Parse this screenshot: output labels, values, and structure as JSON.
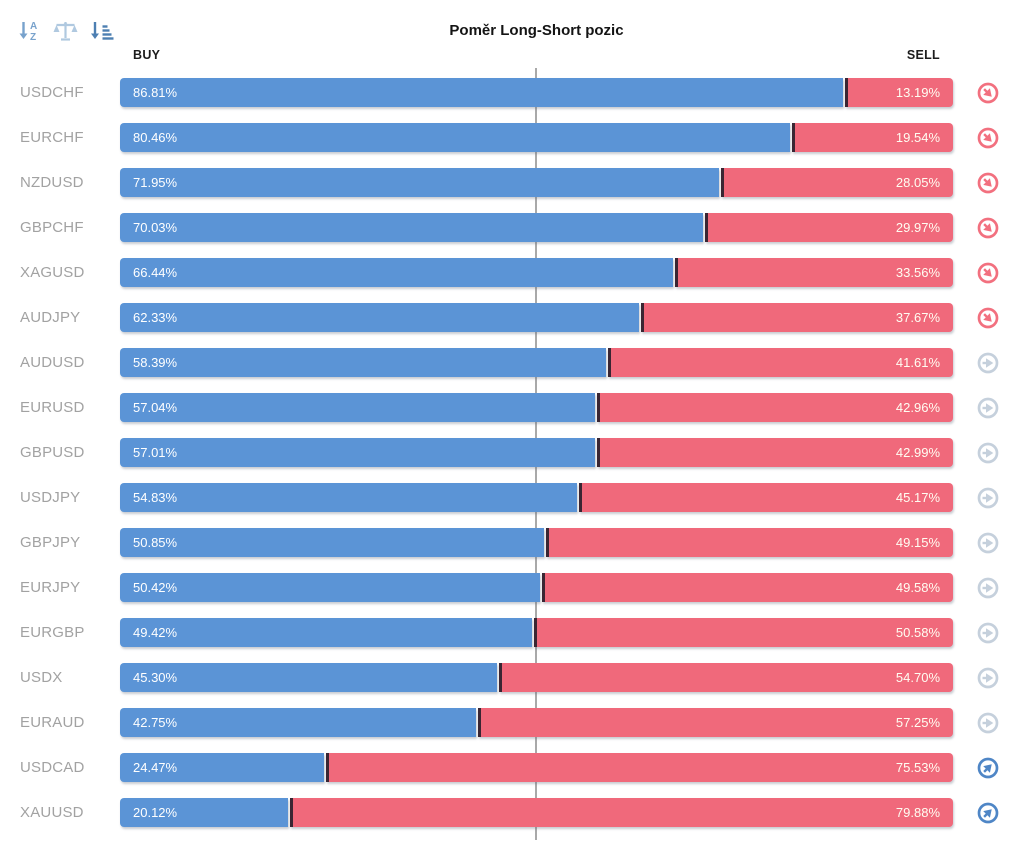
{
  "title": "Poměr Long-Short pozic",
  "toolbar": {
    "sort_alpha_icon": "sort-alphabetical",
    "balance_icon": "balance-scale",
    "sort_value_icon": "sort-by-value"
  },
  "columns": {
    "buy": "BUY",
    "sell": "SELL"
  },
  "colors": {
    "buy_bar": "#5b94d6",
    "sell_bar": "#f0697b",
    "split_line": "#3a2633",
    "center_line": "#a9a9a9",
    "signal_down": "#f2707f",
    "signal_neutral": "#c5d0dc",
    "signal_up": "#4f86c6",
    "symbol_text": "#a2a2a2",
    "header_text": "#1c1c1c"
  },
  "chart_data": {
    "type": "bar",
    "orientation": "horizontal_stacked",
    "title": "Poměr Long-Short pozic",
    "xlim": [
      0,
      100
    ],
    "grid": false,
    "legend_position": "top",
    "center_gridline_at": 50,
    "categories": [
      "USDCHF",
      "EURCHF",
      "NZDUSD",
      "GBPCHF",
      "XAGUSD",
      "AUDJPY",
      "AUDUSD",
      "EURUSD",
      "GBPUSD",
      "USDJPY",
      "GBPJPY",
      "EURJPY",
      "EURGBP",
      "USDX",
      "EURAUD",
      "USDCAD",
      "XAUUSD"
    ],
    "series": [
      {
        "name": "BUY",
        "color": "#5b94d6",
        "values": [
          86.81,
          80.46,
          71.95,
          70.03,
          66.44,
          62.33,
          58.39,
          57.04,
          57.01,
          54.83,
          50.85,
          50.42,
          49.42,
          45.3,
          42.75,
          24.47,
          20.12
        ],
        "labels": [
          "86.81%",
          "80.46%",
          "71.95%",
          "70.03%",
          "66.44%",
          "62.33%",
          "58.39%",
          "57.04%",
          "57.01%",
          "54.83%",
          "50.85%",
          "50.42%",
          "49.42%",
          "45.30%",
          "42.75%",
          "24.47%",
          "20.12%"
        ]
      },
      {
        "name": "SELL",
        "color": "#f0697b",
        "values": [
          13.19,
          19.54,
          28.05,
          29.97,
          33.56,
          37.67,
          41.61,
          42.96,
          42.99,
          45.17,
          49.15,
          49.58,
          50.58,
          54.7,
          57.25,
          75.53,
          79.88
        ],
        "labels": [
          "13.19%",
          "19.54%",
          "28.05%",
          "29.97%",
          "33.56%",
          "37.67%",
          "41.61%",
          "42.96%",
          "42.99%",
          "45.17%",
          "49.15%",
          "49.58%",
          "50.58%",
          "54.70%",
          "57.25%",
          "75.53%",
          "79.88%"
        ]
      }
    ],
    "signals": [
      "down",
      "down",
      "down",
      "down",
      "down",
      "down",
      "neutral",
      "neutral",
      "neutral",
      "neutral",
      "neutral",
      "neutral",
      "neutral",
      "neutral",
      "neutral",
      "up",
      "up"
    ]
  }
}
